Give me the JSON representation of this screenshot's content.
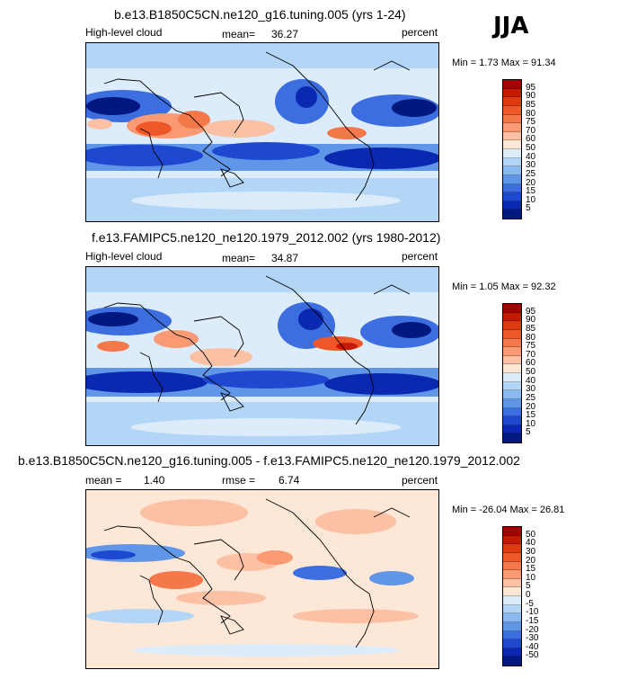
{
  "season": "JJA",
  "panels": [
    {
      "title": "b.e13.B1850C5CN.ne120_g16.tuning.005 (yrs 1-24)",
      "left_label": "High-level cloud",
      "middle_label": "mean=",
      "middle_value": "36.27",
      "right_label": "percent",
      "stats": "Min =    1.73 Max =   91.34",
      "colorbar": {
        "labels": [
          "95",
          "90",
          "85",
          "80",
          "75",
          "70",
          "60",
          "50",
          "40",
          "30",
          "25",
          "20",
          "15",
          "10",
          "5"
        ],
        "colors": [
          "#a50000",
          "#c41a00",
          "#dd3a10",
          "#ee5828",
          "#f4784a",
          "#f99a74",
          "#fcc0a4",
          "#fde8d8",
          "#ddecfa",
          "#b4d6f6",
          "#8ab8f0",
          "#6096e8",
          "#3c6ee0",
          "#1e48d0",
          "#0a28b0",
          "#001880"
        ]
      }
    },
    {
      "title": "f.e13.FAMIPC5.ne120_ne120.1979_2012.002 (yrs 1980-2012)",
      "left_label": "High-level cloud",
      "middle_label": "mean=",
      "middle_value": "34.87",
      "right_label": "percent",
      "stats": "Min =    1.05 Max =   92.32",
      "colorbar": {
        "labels": [
          "95",
          "90",
          "85",
          "80",
          "75",
          "70",
          "60",
          "50",
          "40",
          "30",
          "25",
          "20",
          "15",
          "10",
          "5"
        ],
        "colors": [
          "#a50000",
          "#c41a00",
          "#dd3a10",
          "#ee5828",
          "#f4784a",
          "#f99a74",
          "#fcc0a4",
          "#fde8d8",
          "#ddecfa",
          "#b4d6f6",
          "#8ab8f0",
          "#6096e8",
          "#3c6ee0",
          "#1e48d0",
          "#0a28b0",
          "#001880"
        ]
      }
    },
    {
      "title": "b.e13.B1850C5CN.ne120_g16.tuning.005 - f.e13.FAMIPC5.ne120_ne120.1979_2012.002",
      "left_label": "mean =",
      "left_value": "1.40",
      "middle_label": "rmse =",
      "middle_value": "6.74",
      "right_label": "percent",
      "stats": "Min = -26.04 Max =   26.81",
      "colorbar": {
        "labels": [
          "50",
          "40",
          "30",
          "20",
          "15",
          "10",
          "5",
          "0",
          "-5",
          "-10",
          "-15",
          "-20",
          "-30",
          "-40",
          "-50"
        ],
        "colors": [
          "#a50000",
          "#c41a00",
          "#dd3a10",
          "#ee5828",
          "#f4784a",
          "#f99a74",
          "#fcc0a4",
          "#fde8d8",
          "#ddecfa",
          "#b4d6f6",
          "#8ab8f0",
          "#6096e8",
          "#3c6ee0",
          "#1e48d0",
          "#0a28b0",
          "#001880"
        ]
      }
    }
  ]
}
